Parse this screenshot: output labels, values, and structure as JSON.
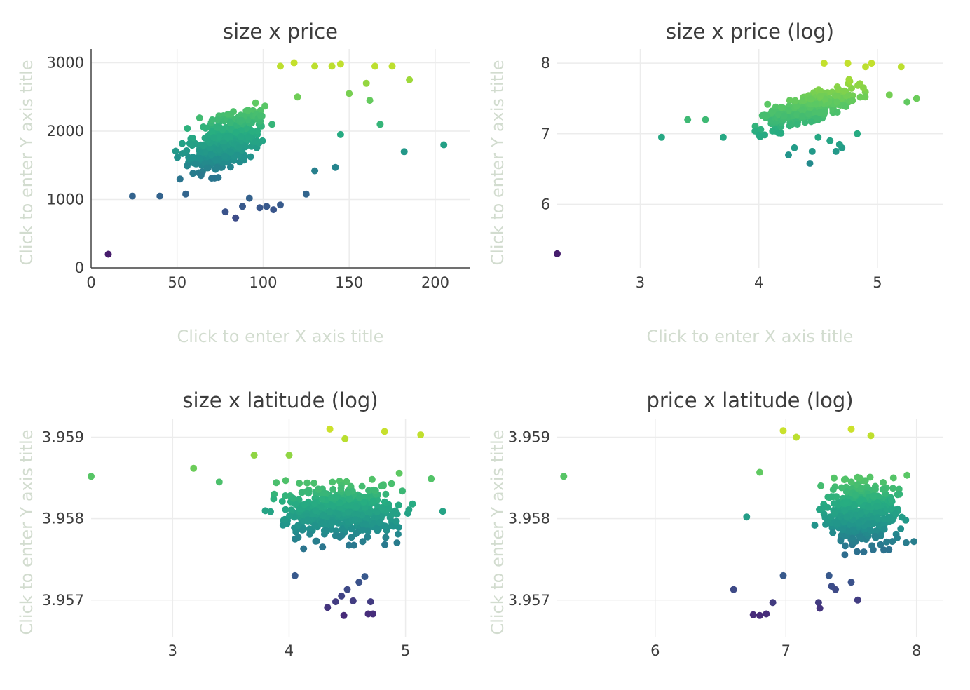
{
  "page": {
    "x_axis_placeholder": "Click to enter X axis title",
    "y_axis_placeholder": "Click to enter Y axis title"
  },
  "chart_data": [
    {
      "type": "scatter",
      "title": "size x price",
      "xlabel": "Click to enter X axis title",
      "ylabel": "Click to enter Y axis title",
      "xlim": [
        0,
        220
      ],
      "ylim": [
        0,
        3200
      ],
      "xticks": [
        0,
        50,
        100,
        150,
        200
      ],
      "yticks": [
        0,
        1000,
        2000,
        3000
      ],
      "ytick_labels": [
        "0",
        "1000",
        "2000",
        "3000"
      ],
      "show_axis_lines": true,
      "colorscale": "viridis",
      "cluster": {
        "cx": [
          45,
          110
        ],
        "cy": [
          1200,
          2800
        ],
        "n": 360
      },
      "points": [
        {
          "x": 10,
          "y": 200
        },
        {
          "x": 24,
          "y": 1050
        },
        {
          "x": 40,
          "y": 1050
        },
        {
          "x": 55,
          "y": 1080
        },
        {
          "x": 78,
          "y": 820
        },
        {
          "x": 84,
          "y": 730
        },
        {
          "x": 88,
          "y": 900
        },
        {
          "x": 92,
          "y": 1020
        },
        {
          "x": 98,
          "y": 880
        },
        {
          "x": 102,
          "y": 900
        },
        {
          "x": 106,
          "y": 850
        },
        {
          "x": 110,
          "y": 920
        },
        {
          "x": 125,
          "y": 1080
        },
        {
          "x": 130,
          "y": 1420
        },
        {
          "x": 142,
          "y": 1470
        },
        {
          "x": 145,
          "y": 1950
        },
        {
          "x": 150,
          "y": 2550
        },
        {
          "x": 160,
          "y": 2700
        },
        {
          "x": 162,
          "y": 2450
        },
        {
          "x": 165,
          "y": 2950
        },
        {
          "x": 168,
          "y": 2100
        },
        {
          "x": 175,
          "y": 2950
        },
        {
          "x": 182,
          "y": 1700
        },
        {
          "x": 185,
          "y": 2750
        },
        {
          "x": 205,
          "y": 1800
        },
        {
          "x": 118,
          "y": 3000
        },
        {
          "x": 130,
          "y": 2950
        },
        {
          "x": 140,
          "y": 2950
        },
        {
          "x": 145,
          "y": 2980
        },
        {
          "x": 110,
          "y": 2950
        },
        {
          "x": 120,
          "y": 2500
        }
      ]
    },
    {
      "type": "scatter",
      "title": "size x price (log)",
      "xlabel": "Click to enter X axis title",
      "ylabel": "Click to enter Y axis title",
      "xlim": [
        2.3,
        5.55
      ],
      "ylim": [
        5.1,
        8.2
      ],
      "xticks": [
        3,
        4,
        5
      ],
      "yticks": [
        6,
        7,
        8
      ],
      "ytick_labels": [
        "6",
        "7",
        "8"
      ],
      "show_axis_lines": false,
      "colorscale": "viridis",
      "cluster": {
        "cx": [
          3.9,
          4.95
        ],
        "cy": [
          7.1,
          8.0
        ],
        "n": 360
      },
      "points": [
        {
          "x": 2.3,
          "y": 5.3
        },
        {
          "x": 3.18,
          "y": 6.95
        },
        {
          "x": 3.4,
          "y": 7.2
        },
        {
          "x": 3.55,
          "y": 7.2
        },
        {
          "x": 3.7,
          "y": 6.95
        },
        {
          "x": 4.0,
          "y": 6.98
        },
        {
          "x": 4.25,
          "y": 6.7
        },
        {
          "x": 4.3,
          "y": 6.8
        },
        {
          "x": 4.43,
          "y": 6.58
        },
        {
          "x": 4.45,
          "y": 6.75
        },
        {
          "x": 4.5,
          "y": 6.95
        },
        {
          "x": 4.6,
          "y": 6.9
        },
        {
          "x": 4.65,
          "y": 6.75
        },
        {
          "x": 4.7,
          "y": 6.8
        },
        {
          "x": 4.68,
          "y": 6.85
        },
        {
          "x": 4.83,
          "y": 7.0
        },
        {
          "x": 5.1,
          "y": 7.55
        },
        {
          "x": 5.2,
          "y": 7.95
        },
        {
          "x": 5.25,
          "y": 7.45
        },
        {
          "x": 5.33,
          "y": 7.5
        },
        {
          "x": 4.55,
          "y": 8.0
        },
        {
          "x": 4.75,
          "y": 8.0
        },
        {
          "x": 4.95,
          "y": 8.0
        },
        {
          "x": 4.9,
          "y": 7.95
        }
      ]
    },
    {
      "type": "scatter",
      "title": "size x latitude (log)",
      "xlabel": "",
      "ylabel": "Click to enter Y axis title",
      "xlim": [
        2.3,
        5.55
      ],
      "ylim": [
        3.95655,
        3.95922
      ],
      "xticks": [
        3,
        4,
        5
      ],
      "yticks": [
        3.957,
        3.958,
        3.959
      ],
      "ytick_labels": [
        "3.957",
        "3.958",
        "3.959"
      ],
      "show_axis_lines": false,
      "colorscale": "viridis",
      "cluster": {
        "cx": [
          3.7,
          5.2
        ],
        "cy": [
          3.9576,
          3.9586
        ],
        "n": 420
      },
      "points": [
        {
          "x": 2.3,
          "y": 3.95852
        },
        {
          "x": 3.18,
          "y": 3.95862
        },
        {
          "x": 3.4,
          "y": 3.95845
        },
        {
          "x": 3.7,
          "y": 3.95878
        },
        {
          "x": 4.0,
          "y": 3.95878
        },
        {
          "x": 4.05,
          "y": 3.9573
        },
        {
          "x": 4.33,
          "y": 3.95691
        },
        {
          "x": 4.35,
          "y": 3.9591
        },
        {
          "x": 4.4,
          "y": 3.95698
        },
        {
          "x": 4.45,
          "y": 3.95705
        },
        {
          "x": 4.47,
          "y": 3.95681
        },
        {
          "x": 4.5,
          "y": 3.95713
        },
        {
          "x": 4.55,
          "y": 3.95699
        },
        {
          "x": 4.6,
          "y": 3.95722
        },
        {
          "x": 4.65,
          "y": 3.95729
        },
        {
          "x": 4.68,
          "y": 3.95683
        },
        {
          "x": 4.7,
          "y": 3.95698
        },
        {
          "x": 4.72,
          "y": 3.95683
        },
        {
          "x": 4.82,
          "y": 3.95907
        },
        {
          "x": 5.13,
          "y": 3.95903
        },
        {
          "x": 5.22,
          "y": 3.95849
        },
        {
          "x": 5.32,
          "y": 3.95809
        },
        {
          "x": 4.48,
          "y": 3.95898
        }
      ]
    },
    {
      "type": "scatter",
      "title": "price x latitude (log)",
      "xlabel": "",
      "ylabel": "Click to enter Y axis title",
      "xlim": [
        5.25,
        8.2
      ],
      "ylim": [
        3.95655,
        3.95922
      ],
      "xticks": [
        6,
        7,
        8
      ],
      "yticks": [
        3.957,
        3.958,
        3.959
      ],
      "ytick_labels": [
        "3.957",
        "3.958",
        "3.959"
      ],
      "show_axis_lines": false,
      "colorscale": "viridis",
      "cluster": {
        "cx": [
          7.15,
          8.0
        ],
        "cy": [
          3.9575,
          3.9586
        ],
        "n": 420
      },
      "points": [
        {
          "x": 5.3,
          "y": 3.95852
        },
        {
          "x": 6.6,
          "y": 3.95713
        },
        {
          "x": 6.75,
          "y": 3.95682
        },
        {
          "x": 6.8,
          "y": 3.95681
        },
        {
          "x": 6.85,
          "y": 3.95683
        },
        {
          "x": 6.9,
          "y": 3.95697
        },
        {
          "x": 6.98,
          "y": 3.9573
        },
        {
          "x": 7.25,
          "y": 3.95697
        },
        {
          "x": 7.26,
          "y": 3.9569
        },
        {
          "x": 7.33,
          "y": 3.9573
        },
        {
          "x": 7.35,
          "y": 3.95717
        },
        {
          "x": 7.38,
          "y": 3.95713
        },
        {
          "x": 7.5,
          "y": 3.95722
        },
        {
          "x": 7.55,
          "y": 3.957
        },
        {
          "x": 6.98,
          "y": 3.95908
        },
        {
          "x": 7.08,
          "y": 3.959
        },
        {
          "x": 7.5,
          "y": 3.9591
        },
        {
          "x": 7.65,
          "y": 3.95902
        },
        {
          "x": 6.7,
          "y": 3.95802
        },
        {
          "x": 7.98,
          "y": 3.95772
        },
        {
          "x": 6.8,
          "y": 3.95857
        }
      ]
    }
  ]
}
